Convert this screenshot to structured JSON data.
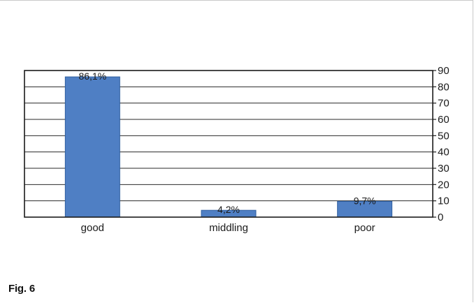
{
  "figure_label": "Fig. 6",
  "chart_data": {
    "type": "bar",
    "categories": [
      "good",
      "middling",
      "poor"
    ],
    "values": [
      86.1,
      4.2,
      9.7
    ],
    "data_labels": [
      "86,1%",
      "4,2%",
      "9,7%"
    ],
    "y_ticks": [
      "0",
      "10",
      "20",
      "30",
      "40",
      "50",
      "60",
      "70",
      "80",
      "90"
    ],
    "ylim": [
      0,
      90
    ],
    "y_axis_position": "right",
    "grid": true,
    "bar_color": "#4f7fc4",
    "bar_border_color": "#2f5f9f"
  }
}
